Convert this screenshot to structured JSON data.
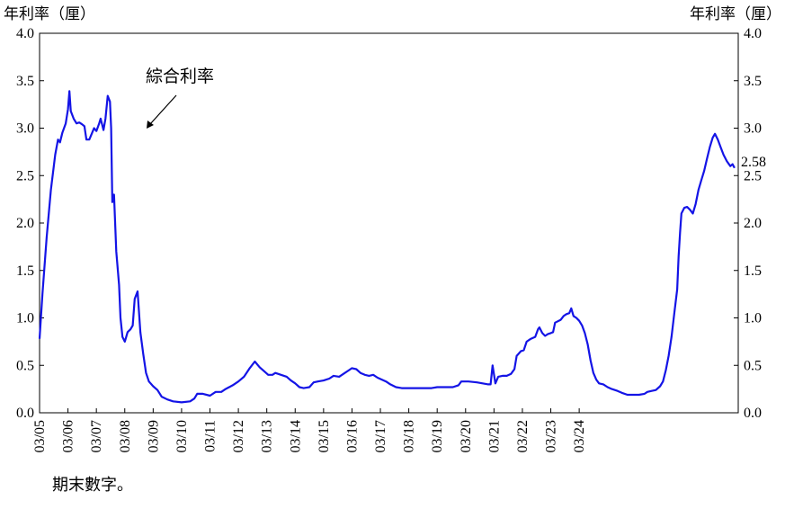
{
  "chart_data": {
    "type": "line",
    "left_axis_unit": "年利率（厘）",
    "right_axis_unit": "年利率（厘）",
    "ylim": [
      0,
      4
    ],
    "y_ticks": [
      "0.0",
      "0.5",
      "1.0",
      "1.5",
      "2.0",
      "2.5",
      "3.0",
      "3.5",
      "4.0"
    ],
    "x_ticks": [
      "03/05",
      "03/06",
      "03/07",
      "03/08",
      "03/09",
      "03/10",
      "03/11",
      "03/12",
      "03/13",
      "03/14",
      "03/15",
      "03/16",
      "03/17",
      "03/18",
      "03/19",
      "03/20",
      "03/21",
      "03/22",
      "03/23",
      "03/24"
    ],
    "grid": false,
    "annotation": "綜合利率",
    "end_value_label": "2.58",
    "line_color": "#1414e6",
    "series": [
      {
        "values": [
          [
            2005.0,
            0.78
          ],
          [
            2005.1,
            1.25
          ],
          [
            2005.25,
            1.85
          ],
          [
            2005.4,
            2.35
          ],
          [
            2005.55,
            2.72
          ],
          [
            2005.65,
            2.88
          ],
          [
            2005.72,
            2.85
          ],
          [
            2005.8,
            2.95
          ],
          [
            2005.92,
            3.05
          ],
          [
            2006.0,
            3.2
          ],
          [
            2006.05,
            3.39
          ],
          [
            2006.1,
            3.18
          ],
          [
            2006.2,
            3.1
          ],
          [
            2006.3,
            3.05
          ],
          [
            2006.4,
            3.06
          ],
          [
            2006.5,
            3.04
          ],
          [
            2006.58,
            3.02
          ],
          [
            2006.65,
            2.88
          ],
          [
            2006.75,
            2.88
          ],
          [
            2006.85,
            2.95
          ],
          [
            2006.92,
            3.0
          ],
          [
            2007.0,
            2.97
          ],
          [
            2007.1,
            3.05
          ],
          [
            2007.15,
            3.1
          ],
          [
            2007.25,
            2.98
          ],
          [
            2007.32,
            3.1
          ],
          [
            2007.4,
            3.34
          ],
          [
            2007.48,
            3.28
          ],
          [
            2007.52,
            3.0
          ],
          [
            2007.56,
            2.22
          ],
          [
            2007.62,
            2.3
          ],
          [
            2007.7,
            1.7
          ],
          [
            2007.8,
            1.35
          ],
          [
            2007.85,
            1.0
          ],
          [
            2007.92,
            0.8
          ],
          [
            2008.0,
            0.75
          ],
          [
            2008.1,
            0.85
          ],
          [
            2008.2,
            0.88
          ],
          [
            2008.28,
            0.92
          ],
          [
            2008.35,
            1.2
          ],
          [
            2008.45,
            1.28
          ],
          [
            2008.55,
            0.85
          ],
          [
            2008.65,
            0.62
          ],
          [
            2008.75,
            0.42
          ],
          [
            2008.85,
            0.33
          ],
          [
            2009.0,
            0.28
          ],
          [
            2009.15,
            0.24
          ],
          [
            2009.3,
            0.17
          ],
          [
            2009.5,
            0.14
          ],
          [
            2009.7,
            0.12
          ],
          [
            2010.0,
            0.11
          ],
          [
            2010.3,
            0.12
          ],
          [
            2010.45,
            0.15
          ],
          [
            2010.55,
            0.2
          ],
          [
            2010.75,
            0.2
          ],
          [
            2011.0,
            0.18
          ],
          [
            2011.2,
            0.22
          ],
          [
            2011.4,
            0.22
          ],
          [
            2011.55,
            0.25
          ],
          [
            2011.8,
            0.29
          ],
          [
            2012.0,
            0.33
          ],
          [
            2012.2,
            0.38
          ],
          [
            2012.4,
            0.47
          ],
          [
            2012.58,
            0.54
          ],
          [
            2012.75,
            0.48
          ],
          [
            2012.9,
            0.44
          ],
          [
            2013.05,
            0.4
          ],
          [
            2013.2,
            0.4
          ],
          [
            2013.3,
            0.42
          ],
          [
            2013.5,
            0.4
          ],
          [
            2013.7,
            0.38
          ],
          [
            2013.85,
            0.34
          ],
          [
            2014.0,
            0.31
          ],
          [
            2014.15,
            0.27
          ],
          [
            2014.3,
            0.26
          ],
          [
            2014.5,
            0.27
          ],
          [
            2014.65,
            0.32
          ],
          [
            2014.8,
            0.33
          ],
          [
            2015.0,
            0.34
          ],
          [
            2015.2,
            0.36
          ],
          [
            2015.35,
            0.39
          ],
          [
            2015.55,
            0.38
          ],
          [
            2015.7,
            0.41
          ],
          [
            2015.9,
            0.45
          ],
          [
            2016.0,
            0.47
          ],
          [
            2016.15,
            0.46
          ],
          [
            2016.3,
            0.42
          ],
          [
            2016.45,
            0.4
          ],
          [
            2016.6,
            0.39
          ],
          [
            2016.75,
            0.4
          ],
          [
            2016.9,
            0.37
          ],
          [
            2017.05,
            0.35
          ],
          [
            2017.2,
            0.33
          ],
          [
            2017.35,
            0.3
          ],
          [
            2017.55,
            0.27
          ],
          [
            2017.75,
            0.26
          ],
          [
            2018.0,
            0.26
          ],
          [
            2018.4,
            0.26
          ],
          [
            2018.8,
            0.26
          ],
          [
            2019.0,
            0.27
          ],
          [
            2019.3,
            0.27
          ],
          [
            2019.55,
            0.27
          ],
          [
            2019.75,
            0.29
          ],
          [
            2019.85,
            0.33
          ],
          [
            2020.1,
            0.33
          ],
          [
            2020.4,
            0.32
          ],
          [
            2020.6,
            0.31
          ],
          [
            2020.8,
            0.3
          ],
          [
            2020.88,
            0.3
          ],
          [
            2020.95,
            0.5
          ],
          [
            2021.05,
            0.31
          ],
          [
            2021.15,
            0.38
          ],
          [
            2021.3,
            0.39
          ],
          [
            2021.45,
            0.39
          ],
          [
            2021.6,
            0.41
          ],
          [
            2021.72,
            0.46
          ],
          [
            2021.8,
            0.6
          ],
          [
            2021.95,
            0.65
          ],
          [
            2022.05,
            0.66
          ],
          [
            2022.15,
            0.75
          ],
          [
            2022.3,
            0.78
          ],
          [
            2022.45,
            0.8
          ],
          [
            2022.55,
            0.88
          ],
          [
            2022.6,
            0.9
          ],
          [
            2022.7,
            0.84
          ],
          [
            2022.8,
            0.81
          ],
          [
            2022.9,
            0.83
          ],
          [
            2023.0,
            0.84
          ],
          [
            2023.08,
            0.85
          ],
          [
            2023.15,
            0.95
          ],
          [
            2023.22,
            0.96
          ],
          [
            2023.35,
            0.98
          ],
          [
            2023.45,
            1.02
          ],
          [
            2023.55,
            1.04
          ],
          [
            2023.65,
            1.05
          ],
          [
            2023.72,
            1.1
          ],
          [
            2023.8,
            1.02
          ],
          [
            2023.9,
            1.0
          ],
          [
            2024.0,
            0.97
          ],
          [
            2024.1,
            0.92
          ],
          [
            2024.2,
            0.84
          ],
          [
            2024.3,
            0.72
          ],
          [
            2024.4,
            0.55
          ],
          [
            2024.5,
            0.42
          ],
          [
            2024.6,
            0.35
          ],
          [
            2024.7,
            0.31
          ],
          [
            2024.85,
            0.3
          ],
          [
            2025.0,
            0.27
          ],
          [
            2025.15,
            0.25
          ],
          [
            2025.35,
            0.23
          ],
          [
            2025.5,
            0.21
          ],
          [
            2025.7,
            0.19
          ],
          [
            2025.9,
            0.19
          ],
          [
            2026.1,
            0.19
          ],
          [
            2026.3,
            0.2
          ],
          [
            2026.4,
            0.22
          ],
          [
            2026.55,
            0.23
          ],
          [
            2026.7,
            0.24
          ],
          [
            2026.85,
            0.28
          ],
          [
            2026.95,
            0.33
          ],
          [
            2027.05,
            0.45
          ],
          [
            2027.15,
            0.6
          ],
          [
            2027.25,
            0.8
          ],
          [
            2027.35,
            1.05
          ],
          [
            2027.45,
            1.3
          ],
          [
            2027.5,
            1.65
          ],
          [
            2027.55,
            1.9
          ],
          [
            2027.6,
            2.1
          ],
          [
            2027.7,
            2.16
          ],
          [
            2027.8,
            2.17
          ],
          [
            2027.9,
            2.14
          ],
          [
            2028.0,
            2.1
          ],
          [
            2028.1,
            2.2
          ],
          [
            2028.2,
            2.35
          ],
          [
            2028.3,
            2.45
          ],
          [
            2028.4,
            2.55
          ],
          [
            2028.5,
            2.68
          ],
          [
            2028.6,
            2.8
          ],
          [
            2028.7,
            2.9
          ],
          [
            2028.78,
            2.94
          ],
          [
            2028.88,
            2.88
          ],
          [
            2028.98,
            2.8
          ],
          [
            2029.08,
            2.72
          ],
          [
            2029.2,
            2.65
          ],
          [
            2029.32,
            2.6
          ],
          [
            2029.4,
            2.62
          ],
          [
            2029.47,
            2.58
          ]
        ]
      }
    ]
  },
  "footnote": "期末數字。"
}
